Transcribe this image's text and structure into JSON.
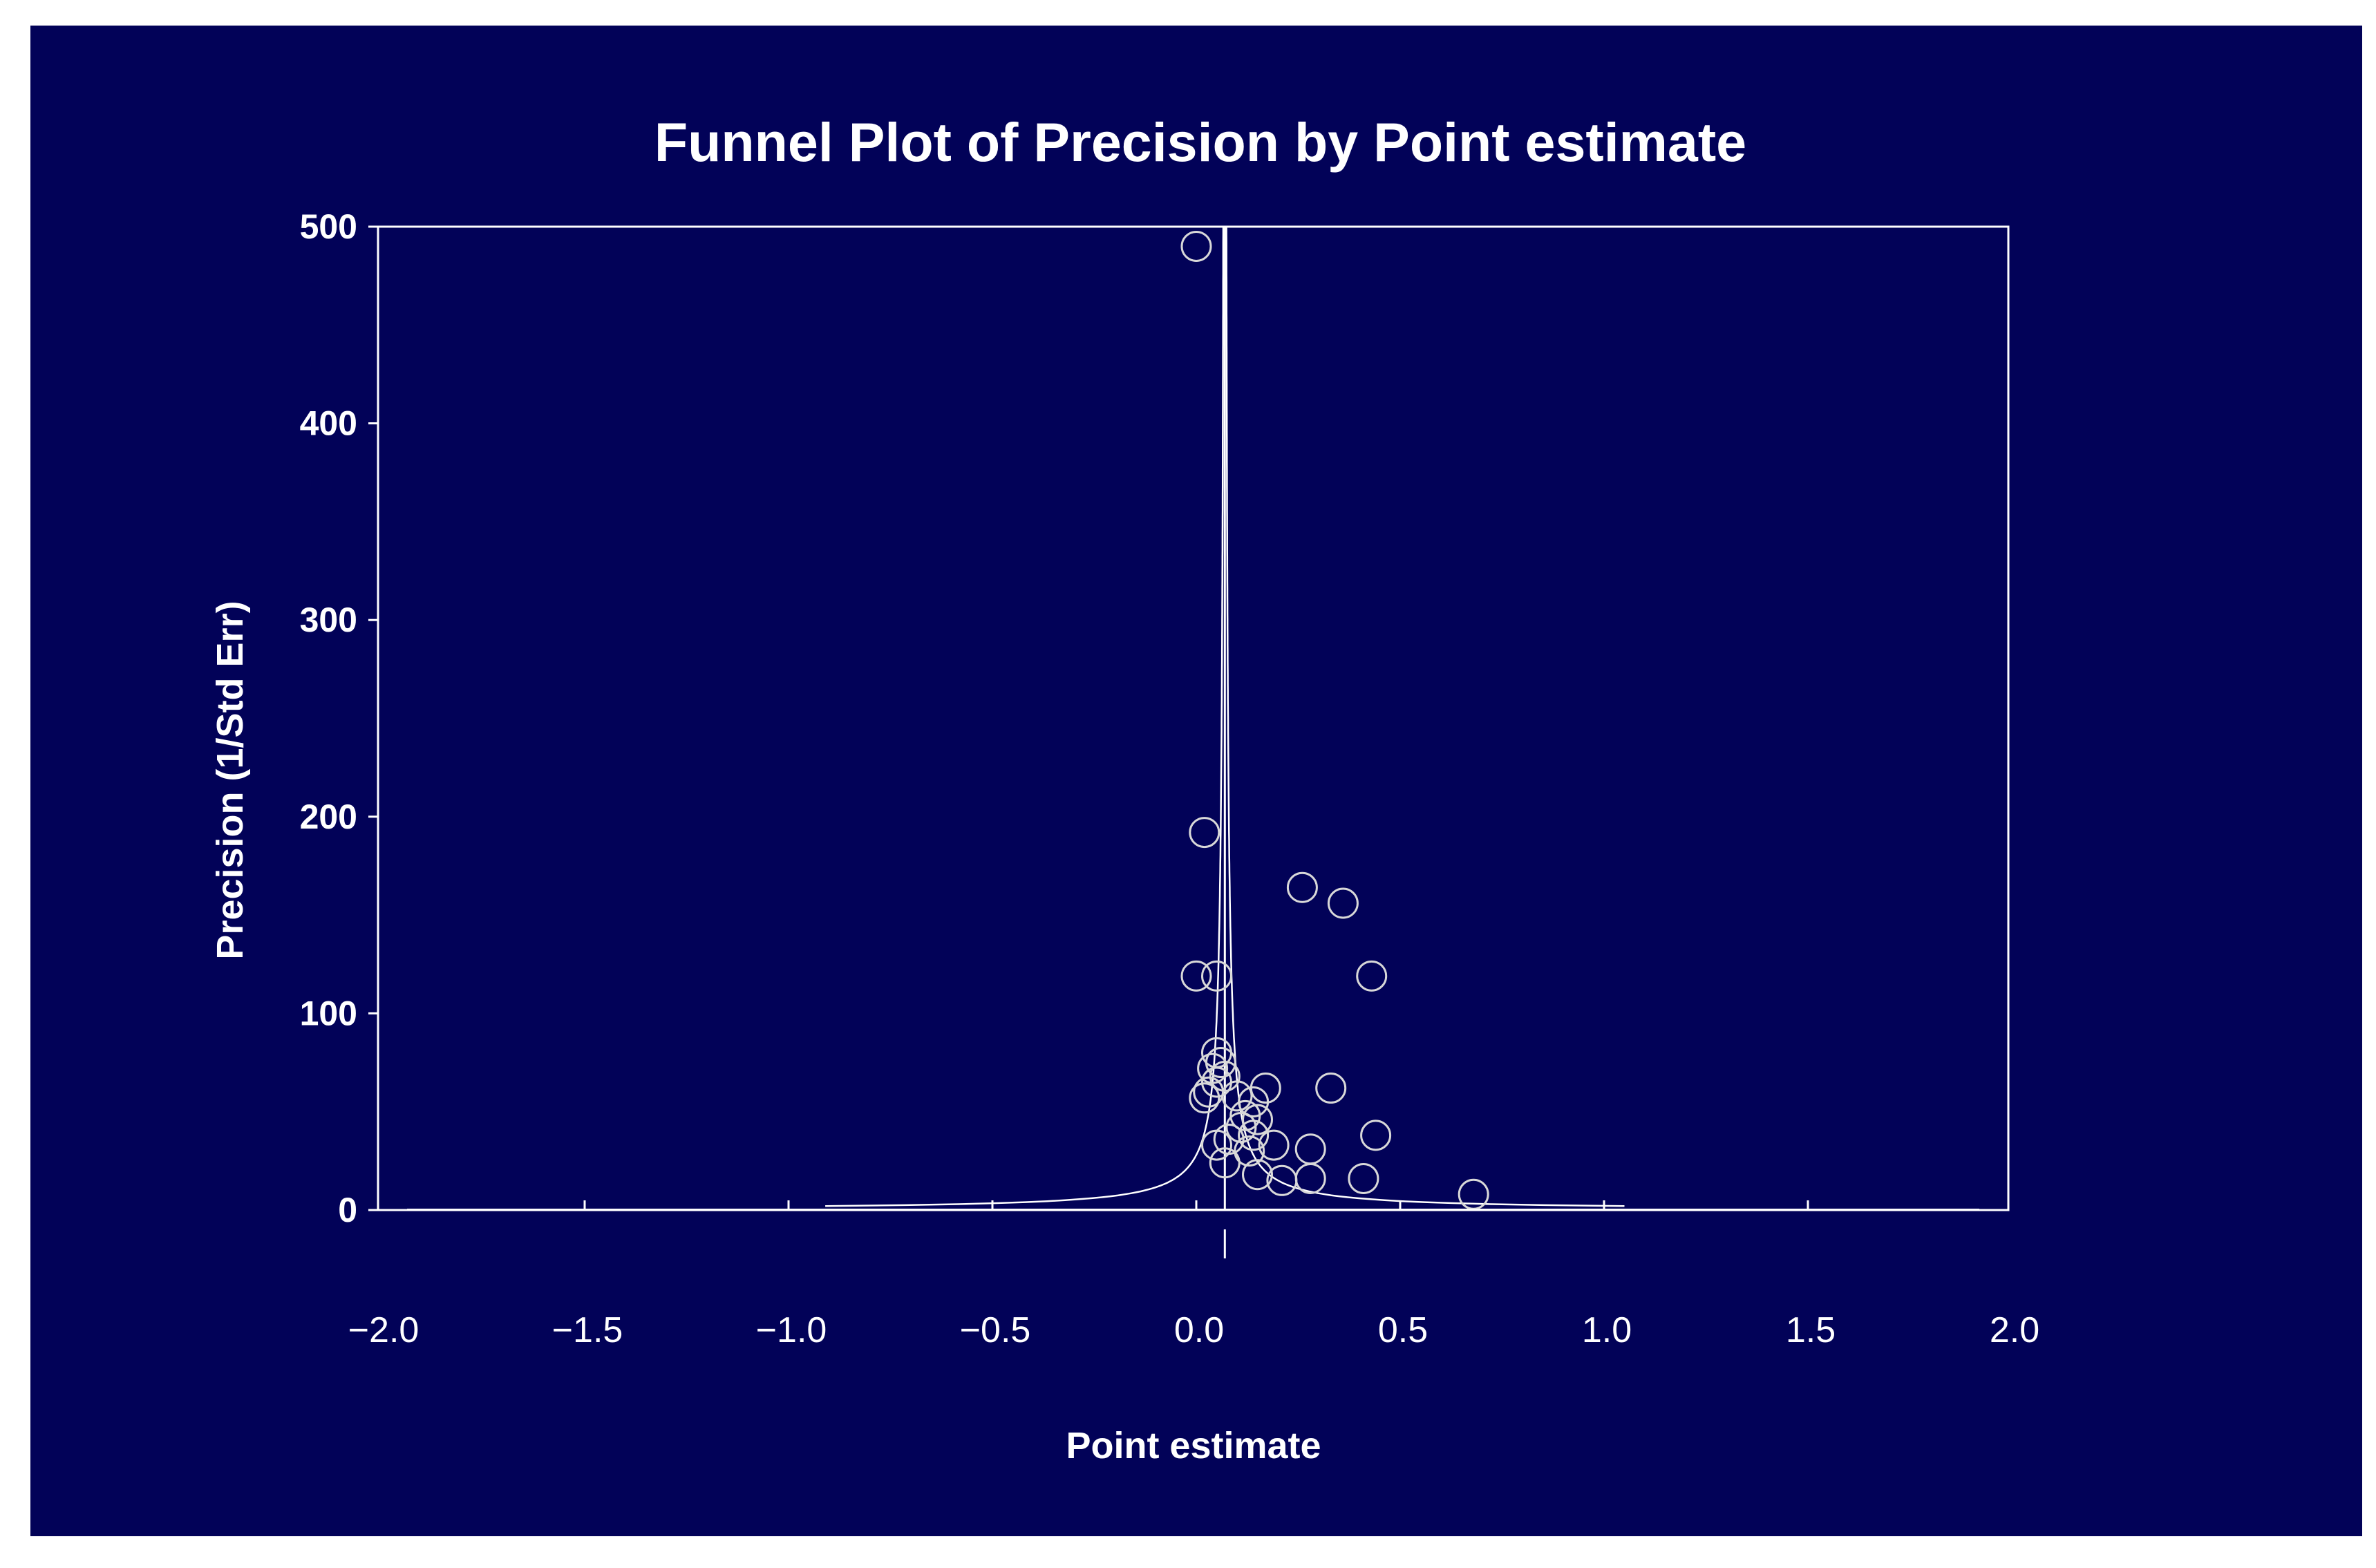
{
  "chart_data": {
    "type": "scatter",
    "title": "Funnel Plot of Precision by Point estimate",
    "xlabel": "Point estimate",
    "ylabel": "Precision (1/Std Err)",
    "xlim": [
      -2.0,
      2.0
    ],
    "ylim": [
      0,
      500
    ],
    "x_ticks": [
      -2.0,
      -1.5,
      -1.0,
      -0.5,
      0.0,
      0.5,
      1.0,
      1.5,
      2.0
    ],
    "x_tick_labels": [
      "−2.0",
      "−1.5",
      "−1.0",
      "−0.5",
      "0.0",
      "0.5",
      "1.0",
      "1.5",
      "2.0"
    ],
    "y_ticks": [
      0,
      100,
      200,
      300,
      400,
      500
    ],
    "y_tick_labels": [
      "0",
      "100",
      "200",
      "300",
      "400",
      "500"
    ],
    "pooled_estimate": 0.07,
    "funnel_z": 1.96,
    "grid": false,
    "legend": "none",
    "colors": {
      "background": "#020258",
      "foreground": "#ffffff",
      "markers": "#d8d8d8"
    },
    "points": [
      {
        "x": 0.0,
        "y": 490
      },
      {
        "x": 0.02,
        "y": 192
      },
      {
        "x": 0.26,
        "y": 164
      },
      {
        "x": 0.36,
        "y": 156
      },
      {
        "x": 0.43,
        "y": 119
      },
      {
        "x": 0.0,
        "y": 119
      },
      {
        "x": 0.05,
        "y": 119
      },
      {
        "x": 0.05,
        "y": 80
      },
      {
        "x": 0.06,
        "y": 75
      },
      {
        "x": 0.04,
        "y": 72
      },
      {
        "x": 0.07,
        "y": 68
      },
      {
        "x": 0.05,
        "y": 65
      },
      {
        "x": 0.03,
        "y": 60
      },
      {
        "x": 0.02,
        "y": 57
      },
      {
        "x": 0.33,
        "y": 62
      },
      {
        "x": 0.17,
        "y": 62
      },
      {
        "x": 0.1,
        "y": 58
      },
      {
        "x": 0.14,
        "y": 55
      },
      {
        "x": 0.12,
        "y": 48
      },
      {
        "x": 0.15,
        "y": 46
      },
      {
        "x": 0.11,
        "y": 42
      },
      {
        "x": 0.14,
        "y": 38
      },
      {
        "x": 0.44,
        "y": 38
      },
      {
        "x": 0.08,
        "y": 36
      },
      {
        "x": 0.05,
        "y": 33
      },
      {
        "x": 0.19,
        "y": 33
      },
      {
        "x": 0.28,
        "y": 31
      },
      {
        "x": 0.13,
        "y": 30
      },
      {
        "x": 0.07,
        "y": 24
      },
      {
        "x": 0.15,
        "y": 18
      },
      {
        "x": 0.21,
        "y": 15
      },
      {
        "x": 0.28,
        "y": 16
      },
      {
        "x": 0.41,
        "y": 16
      },
      {
        "x": 0.68,
        "y": 8
      }
    ]
  }
}
